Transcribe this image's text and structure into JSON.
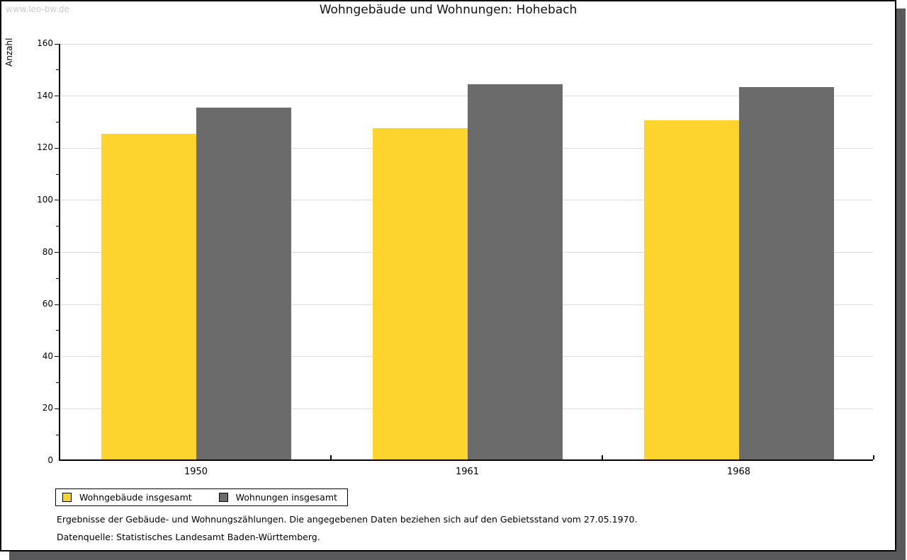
{
  "watermark": "www.leo-bw.de",
  "header": {
    "title": "Wohngebäude und Wohnungen: Hohebach"
  },
  "chart_data": {
    "type": "bar",
    "title": "Wohngebäude und Wohnungen: Hohebach",
    "xlabel": "",
    "ylabel": "Anzahl",
    "categories": [
      "1950",
      "1961",
      "1968"
    ],
    "series": [
      {
        "name": "Wohngebäude insgesamt",
        "color": "#FCD42D",
        "values": [
          125,
          127,
          130
        ]
      },
      {
        "name": "Wohnungen insgesamt",
        "color": "#6B6B6B",
        "values": [
          135,
          144,
          143
        ]
      }
    ],
    "ylim": [
      0,
      160
    ],
    "ytick_step": 20,
    "minor_tick_step": 10,
    "grid": true,
    "gridline_color": "#DCDCDC",
    "legend_position": "bottom-left"
  },
  "footnotes": {
    "line1": "Ergebnisse der Gebäude- und Wohnungszählungen. Die angegebenen Daten beziehen sich auf den Gebietsstand vom 27.05.1970.",
    "line2": "Datenquelle: Statistisches Landesamt Baden-Württemberg."
  },
  "colors": {
    "series1": "#FCD42D",
    "series2": "#6B6B6B",
    "shadow": "#59595B",
    "watermark": "#CBCBCB",
    "gridline": "#DCDCDC"
  }
}
